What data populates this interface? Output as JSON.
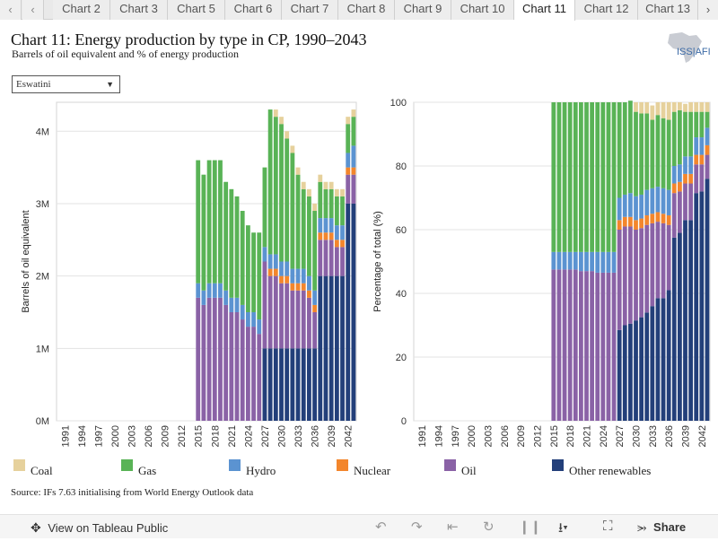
{
  "tabs": {
    "prev_icon": "chevron-left-icon",
    "next_icon": "chevron-right-icon",
    "items": [
      "Chart 2",
      "Chart 3",
      "Chart 5",
      "Chart 6",
      "Chart 7",
      "Chart 8",
      "Chart 9",
      "Chart 10",
      "Chart 11",
      "Chart 12",
      "Chart 13"
    ],
    "active": "Chart 11"
  },
  "header": {
    "title": "Chart 11: Energy production by type in CP, 1990–2043",
    "subtitle": "Barrels of oil equivalent and % of energy production",
    "logo_text": "ISS|AFI"
  },
  "filter": {
    "selected": "Eswatini"
  },
  "legend": [
    {
      "label": "Coal",
      "color": "#e6d19c"
    },
    {
      "label": "Gas",
      "color": "#59b356"
    },
    {
      "label": "Hydro",
      "color": "#5b93d1"
    },
    {
      "label": "Nuclear",
      "color": "#f3862c"
    },
    {
      "label": "Oil",
      "color": "#8a62a6"
    },
    {
      "label": "Other renewables",
      "color": "#233f7a"
    }
  ],
  "source": "Source: IFs 7.63 initialising from World Energy Outlook data",
  "footer": {
    "view_label": "View on Tableau Public",
    "share_label": "Share"
  },
  "chart_data": [
    {
      "type": "bar",
      "stacked": true,
      "ylabel": "Barrels of oil equivalent",
      "ylim": [
        0,
        4400000
      ],
      "y_ticks": [
        "0M",
        "1M",
        "2M",
        "3M",
        "4M"
      ],
      "x_tick_labels": [
        "1991",
        "1994",
        "1997",
        "2000",
        "2003",
        "2006",
        "2009",
        "2012",
        "2015",
        "2018",
        "2021",
        "2024",
        "2027",
        "2030",
        "2033",
        "2036",
        "2039",
        "2042"
      ],
      "categories": [
        "1990",
        "1991",
        "1992",
        "1993",
        "1994",
        "1995",
        "1996",
        "1997",
        "1998",
        "1999",
        "2000",
        "2001",
        "2002",
        "2003",
        "2004",
        "2005",
        "2006",
        "2007",
        "2008",
        "2009",
        "2010",
        "2011",
        "2012",
        "2013",
        "2014",
        "2015",
        "2016",
        "2017",
        "2018",
        "2019",
        "2020",
        "2021",
        "2022",
        "2023",
        "2024",
        "2025",
        "2026",
        "2027",
        "2028",
        "2029",
        "2030",
        "2031",
        "2032",
        "2033",
        "2034",
        "2035",
        "2036",
        "2037",
        "2038",
        "2039",
        "2040",
        "2041",
        "2042",
        "2043"
      ],
      "series": [
        {
          "name": "Other renewables",
          "values": [
            0,
            0,
            0,
            0,
            0,
            0,
            0,
            0,
            0,
            0,
            0,
            0,
            0,
            0,
            0,
            0,
            0,
            0,
            0,
            0,
            0,
            0,
            0,
            0,
            0,
            0,
            0,
            0,
            0,
            0,
            0,
            0,
            0,
            0,
            0,
            0,
            0,
            1000000,
            1000000,
            1000000,
            1000000,
            1000000,
            1000000,
            1000000,
            1000000,
            1000000,
            1000000,
            2000000,
            2000000,
            2000000,
            2000000,
            2000000,
            3000000,
            3000000
          ]
        },
        {
          "name": "Oil",
          "values": [
            0,
            0,
            0,
            0,
            0,
            0,
            0,
            0,
            0,
            0,
            0,
            0,
            0,
            0,
            0,
            0,
            0,
            0,
            0,
            0,
            0,
            0,
            0,
            0,
            0,
            1700000,
            1600000,
            1700000,
            1700000,
            1700000,
            1600000,
            1500000,
            1500000,
            1400000,
            1300000,
            1300000,
            1200000,
            1200000,
            1000000,
            1000000,
            900000,
            900000,
            800000,
            800000,
            800000,
            700000,
            500000,
            500000,
            500000,
            500000,
            400000,
            400000,
            400000,
            400000
          ]
        },
        {
          "name": "Nuclear",
          "values": [
            0,
            0,
            0,
            0,
            0,
            0,
            0,
            0,
            0,
            0,
            0,
            0,
            0,
            0,
            0,
            0,
            0,
            0,
            0,
            0,
            0,
            0,
            0,
            0,
            0,
            0,
            0,
            0,
            0,
            0,
            0,
            0,
            0,
            0,
            0,
            0,
            0,
            0,
            100000,
            100000,
            100000,
            100000,
            100000,
            100000,
            100000,
            100000,
            100000,
            100000,
            100000,
            100000,
            100000,
            100000,
            100000,
            100000
          ]
        },
        {
          "name": "Hydro",
          "values": [
            0,
            0,
            0,
            0,
            0,
            0,
            0,
            0,
            0,
            0,
            0,
            0,
            0,
            0,
            0,
            0,
            0,
            0,
            0,
            0,
            0,
            0,
            0,
            0,
            0,
            200000,
            200000,
            200000,
            200000,
            200000,
            200000,
            200000,
            200000,
            200000,
            200000,
            200000,
            200000,
            200000,
            200000,
            200000,
            200000,
            200000,
            200000,
            200000,
            200000,
            200000,
            200000,
            200000,
            200000,
            200000,
            200000,
            200000,
            200000,
            300000
          ]
        },
        {
          "name": "Gas",
          "values": [
            0,
            0,
            0,
            0,
            0,
            0,
            0,
            0,
            0,
            0,
            0,
            0,
            0,
            0,
            0,
            0,
            0,
            0,
            0,
            0,
            0,
            0,
            0,
            0,
            0,
            1700000,
            1600000,
            1700000,
            1700000,
            1700000,
            1500000,
            1500000,
            1400000,
            1300000,
            1200000,
            1100000,
            1200000,
            1100000,
            2000000,
            1900000,
            1900000,
            1700000,
            1600000,
            1300000,
            1100000,
            1100000,
            1100000,
            500000,
            400000,
            400000,
            400000,
            400000,
            400000,
            400000
          ]
        },
        {
          "name": "Coal",
          "values": [
            0,
            0,
            0,
            0,
            0,
            0,
            0,
            0,
            0,
            0,
            0,
            0,
            0,
            0,
            0,
            0,
            0,
            0,
            0,
            0,
            0,
            0,
            0,
            0,
            0,
            0,
            0,
            0,
            0,
            0,
            0,
            0,
            0,
            0,
            0,
            0,
            0,
            0,
            0,
            100000,
            100000,
            100000,
            100000,
            100000,
            100000,
            100000,
            100000,
            100000,
            100000,
            100000,
            100000,
            100000,
            100000,
            100000
          ]
        }
      ]
    },
    {
      "type": "bar",
      "stacked": true,
      "ylabel": "Percentage of total (%)",
      "ylim": [
        0,
        100
      ],
      "y_ticks": [
        "0",
        "20",
        "40",
        "60",
        "80",
        "100"
      ],
      "x_tick_labels": [
        "1991",
        "1994",
        "1997",
        "2000",
        "2003",
        "2006",
        "2009",
        "2012",
        "2015",
        "2018",
        "2021",
        "2024",
        "2027",
        "2030",
        "2033",
        "2036",
        "2039",
        "2042"
      ],
      "categories": [
        "1990",
        "1991",
        "1992",
        "1993",
        "1994",
        "1995",
        "1996",
        "1997",
        "1998",
        "1999",
        "2000",
        "2001",
        "2002",
        "2003",
        "2004",
        "2005",
        "2006",
        "2007",
        "2008",
        "2009",
        "2010",
        "2011",
        "2012",
        "2013",
        "2014",
        "2015",
        "2016",
        "2017",
        "2018",
        "2019",
        "2020",
        "2021",
        "2022",
        "2023",
        "2024",
        "2025",
        "2026",
        "2027",
        "2028",
        "2029",
        "2030",
        "2031",
        "2032",
        "2033",
        "2034",
        "2035",
        "2036",
        "2037",
        "2038",
        "2039",
        "2040",
        "2041",
        "2042",
        "2043"
      ],
      "series": [
        {
          "name": "Other renewables",
          "values": [
            0,
            0,
            0,
            0,
            0,
            0,
            0,
            0,
            0,
            0,
            0,
            0,
            0,
            0,
            0,
            0,
            0,
            0,
            0,
            0,
            0,
            0,
            0,
            0,
            0,
            0,
            0,
            0,
            0,
            0,
            0,
            0,
            0,
            0,
            0,
            0,
            0,
            28.5,
            30,
            30.5,
            31.5,
            32.5,
            34,
            36,
            38.5,
            38.5,
            41,
            57.5,
            59,
            63,
            63,
            71.5,
            72,
            76
          ]
        },
        {
          "name": "Oil",
          "values": [
            0,
            0,
            0,
            0,
            0,
            0,
            0,
            0,
            0,
            0,
            0,
            0,
            0,
            0,
            0,
            0,
            0,
            0,
            0,
            0,
            0,
            0,
            0,
            0,
            0,
            47.5,
            47.5,
            47.5,
            47.5,
            47.5,
            47,
            47,
            47,
            46.5,
            46.5,
            46.5,
            46.5,
            31.5,
            31,
            30.5,
            28.5,
            28,
            27.5,
            26,
            24,
            23.5,
            20.5,
            14,
            13,
            11.5,
            11.5,
            9,
            8.5,
            7.5
          ]
        },
        {
          "name": "Nuclear",
          "values": [
            0,
            0,
            0,
            0,
            0,
            0,
            0,
            0,
            0,
            0,
            0,
            0,
            0,
            0,
            0,
            0,
            0,
            0,
            0,
            0,
            0,
            0,
            0,
            0,
            0,
            0,
            0,
            0,
            0,
            0,
            0,
            0,
            0,
            0,
            0,
            0,
            0,
            3,
            3,
            3,
            3,
            3,
            3,
            3,
            3,
            3,
            3,
            3,
            3,
            3,
            3,
            3,
            3,
            3
          ]
        },
        {
          "name": "Hydro",
          "values": [
            0,
            0,
            0,
            0,
            0,
            0,
            0,
            0,
            0,
            0,
            0,
            0,
            0,
            0,
            0,
            0,
            0,
            0,
            0,
            0,
            0,
            0,
            0,
            0,
            0,
            5.5,
            5.5,
            5.5,
            5.5,
            5.5,
            6,
            6,
            6,
            6.5,
            6.5,
            6.5,
            6.5,
            7,
            7,
            7.5,
            7.5,
            7.5,
            8,
            8,
            8,
            8,
            8,
            5.5,
            5.5,
            5.5,
            5.5,
            5.5,
            5.5,
            5.5
          ]
        },
        {
          "name": "Gas",
          "values": [
            0,
            0,
            0,
            0,
            0,
            0,
            0,
            0,
            0,
            0,
            0,
            0,
            0,
            0,
            0,
            0,
            0,
            0,
            0,
            0,
            0,
            0,
            0,
            0,
            0,
            47,
            47,
            47,
            47,
            47,
            47,
            47,
            47,
            47,
            47,
            47,
            47,
            30,
            29,
            29,
            26.5,
            25.5,
            24,
            21.5,
            22.5,
            22,
            22,
            17,
            17,
            14,
            14,
            8,
            8,
            5
          ]
        },
        {
          "name": "Coal",
          "values": [
            0,
            0,
            0,
            0,
            0,
            0,
            0,
            0,
            0,
            0,
            0,
            0,
            0,
            0,
            0,
            0,
            0,
            0,
            0,
            0,
            0,
            0,
            0,
            0,
            0,
            0,
            0,
            0,
            0,
            0,
            0,
            0,
            0,
            0,
            0,
            0,
            0,
            0,
            0,
            0,
            3,
            3.5,
            3.5,
            4.5,
            4,
            5,
            5.5,
            3,
            2.5,
            2.5,
            3,
            3,
            3,
            3
          ]
        }
      ]
    }
  ]
}
